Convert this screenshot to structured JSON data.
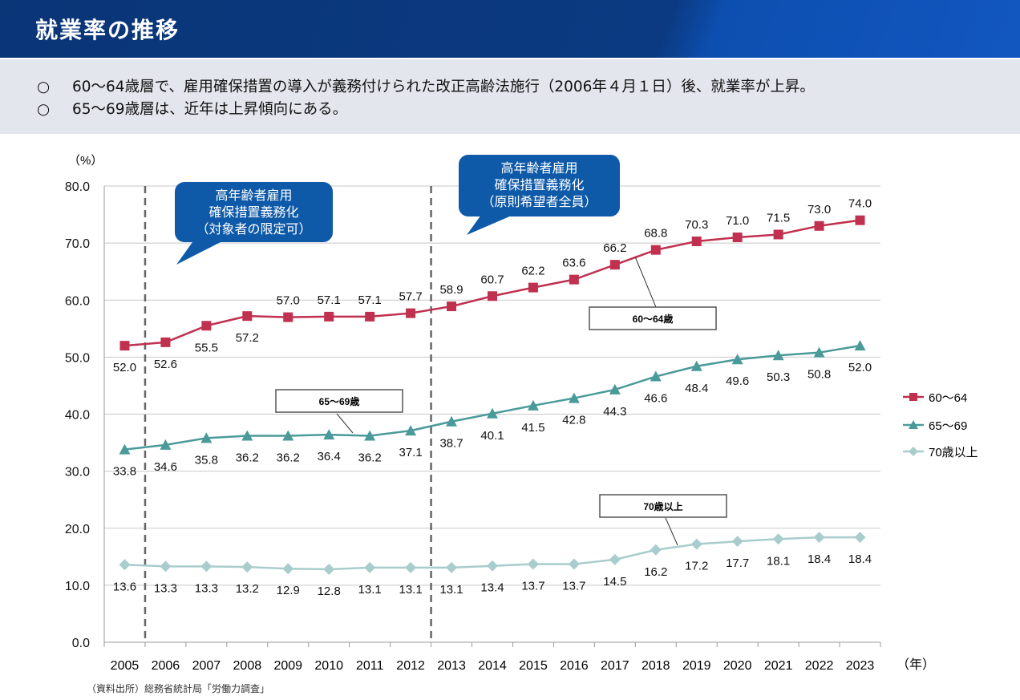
{
  "header": {
    "title": "就業率の推移"
  },
  "summary": {
    "bullet": "○",
    "items": [
      "60～64歳層で、雇用確保措置の導入が義務付けられた改正高齢法施行（2006年４月１日）後、就業率が上昇。",
      "65～69歳層は、近年は上昇傾向にある。"
    ]
  },
  "chart_data": {
    "type": "line",
    "ylabel": "（%）",
    "xlabel": "（年）",
    "ylim": [
      0,
      80
    ],
    "yticks": [
      "0.0",
      "10.0",
      "20.0",
      "30.0",
      "40.0",
      "50.0",
      "60.0",
      "70.0",
      "80.0"
    ],
    "grid": true,
    "legend_position": "right",
    "categories": [
      "2005",
      "2006",
      "2007",
      "2008",
      "2009",
      "2010",
      "2011",
      "2012",
      "2013",
      "2014",
      "2015",
      "2016",
      "2017",
      "2018",
      "2019",
      "2020",
      "2021",
      "2022",
      "2023"
    ],
    "series": [
      {
        "name": "60～64",
        "color": "#c0304f",
        "marker": "square",
        "values": [
          52.0,
          52.6,
          55.5,
          57.2,
          57.0,
          57.1,
          57.1,
          57.7,
          58.9,
          60.7,
          62.2,
          63.6,
          66.2,
          68.8,
          70.3,
          71.0,
          71.5,
          73.0,
          74.0
        ]
      },
      {
        "name": "65～69",
        "color": "#4a9a9a",
        "marker": "triangle",
        "values": [
          33.8,
          34.6,
          35.8,
          36.2,
          36.2,
          36.4,
          36.2,
          37.1,
          38.7,
          40.1,
          41.5,
          42.8,
          44.3,
          46.6,
          48.4,
          49.6,
          50.3,
          50.8,
          52.0
        ]
      },
      {
        "name": "70歳以上",
        "color": "#a9cccc",
        "marker": "diamond",
        "values": [
          13.6,
          13.3,
          13.3,
          13.2,
          12.9,
          12.8,
          13.1,
          13.1,
          13.1,
          13.4,
          13.7,
          13.7,
          14.5,
          16.2,
          17.2,
          17.7,
          18.1,
          18.4,
          18.4
        ]
      }
    ],
    "vlines": [
      "2006",
      "2013"
    ],
    "callouts": [
      {
        "lines": [
          "高年齢者雇用",
          "確保措置義務化",
          "（対象者の限定可）"
        ],
        "color": "#0f5aa8"
      },
      {
        "lines": [
          "高年齢者雇用",
          "確保措置義務化",
          "（原則希望者全員）"
        ],
        "color": "#0f5aa8"
      }
    ],
    "series_labels": [
      "60～64歳",
      "65～69歳",
      "70歳以上"
    ]
  },
  "source": "（資料出所）総務省統計局「労働力調査」"
}
